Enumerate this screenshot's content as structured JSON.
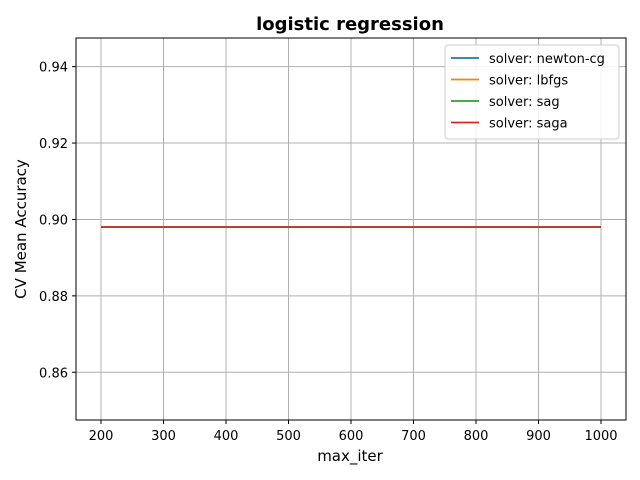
{
  "chart_data": {
    "type": "line",
    "title": "logistic regression",
    "xlabel": "max_iter",
    "ylabel": "CV Mean Accuracy",
    "x": [
      200,
      300,
      400,
      500,
      600,
      700,
      800,
      900,
      1000
    ],
    "xlim": [
      160,
      1040
    ],
    "ylim": [
      0.8475,
      0.9475
    ],
    "xticks": [
      200,
      300,
      400,
      500,
      600,
      700,
      800,
      900,
      1000
    ],
    "yticks": [
      0.86,
      0.88,
      0.9,
      0.92,
      0.94
    ],
    "ytick_labels": [
      "0.86",
      "0.88",
      "0.90",
      "0.92",
      "0.94"
    ],
    "grid": true,
    "legend_position": "top-right",
    "series": [
      {
        "name": "solver: newton-cg",
        "color": "#1f77b4",
        "values": [
          0.898,
          0.898,
          0.898,
          0.898,
          0.898,
          0.898,
          0.898,
          0.898,
          0.898
        ]
      },
      {
        "name": "solver: lbfgs",
        "color": "#ff7f0e",
        "values": [
          0.898,
          0.898,
          0.898,
          0.898,
          0.898,
          0.898,
          0.898,
          0.898,
          0.898
        ]
      },
      {
        "name": "solver: sag",
        "color": "#2ca02c",
        "values": [
          0.898,
          0.898,
          0.898,
          0.898,
          0.898,
          0.898,
          0.898,
          0.898,
          0.898
        ]
      },
      {
        "name": "solver: saga",
        "color": "#d62728",
        "values": [
          0.898,
          0.898,
          0.898,
          0.898,
          0.898,
          0.898,
          0.898,
          0.898,
          0.898
        ]
      }
    ]
  }
}
